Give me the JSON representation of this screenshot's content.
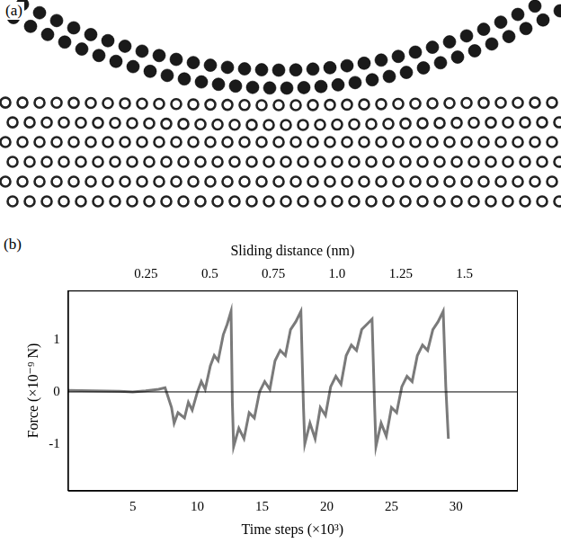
{
  "panel_a": {
    "label": "(a)"
  },
  "panel_b": {
    "label": "(b)"
  },
  "chart_data": {
    "type": "line",
    "x_label": "Time steps (×10³)",
    "y_label": "Force (×10⁻⁹ N)",
    "x2_label": "Sliding distance (nm)",
    "color": "#7a7a7a",
    "grid": false,
    "x": [
      0,
      2,
      4,
      5,
      6,
      7,
      7.5,
      8,
      8.2,
      8.5,
      9,
      9.3,
      9.6,
      10,
      10.3,
      10.6,
      11,
      11.3,
      11.6,
      12,
      12.3,
      12.6,
      12.7,
      12.8,
      13.2,
      13.6,
      14,
      14.4,
      14.8,
      15.2,
      15.6,
      16,
      16.4,
      16.8,
      17.2,
      17.6,
      18,
      18.2,
      18.3,
      18.7,
      19.1,
      19.5,
      19.9,
      20.3,
      20.7,
      21.1,
      21.5,
      21.9,
      22.3,
      22.7,
      23.1,
      23.5,
      23.7,
      23.8,
      24.2,
      24.6,
      25,
      25.4,
      25.8,
      26.2,
      26.6,
      27,
      27.4,
      27.8,
      28.2,
      28.6,
      29,
      29.2,
      29.4
    ],
    "values": [
      0.03,
      0.02,
      0.01,
      0.0,
      0.02,
      0.05,
      0.08,
      -0.3,
      -0.6,
      -0.4,
      -0.5,
      -0.2,
      -0.35,
      0.0,
      0.2,
      0.05,
      0.5,
      0.7,
      0.6,
      1.1,
      1.3,
      1.55,
      -0.2,
      -1.05,
      -0.7,
      -0.9,
      -0.4,
      -0.5,
      0.0,
      0.2,
      0.05,
      0.6,
      0.8,
      0.7,
      1.2,
      1.35,
      1.55,
      -0.3,
      -1.0,
      -0.6,
      -0.9,
      -0.3,
      -0.45,
      0.1,
      0.3,
      0.15,
      0.7,
      0.9,
      0.8,
      1.2,
      1.3,
      1.4,
      -0.3,
      -1.05,
      -0.6,
      -0.85,
      -0.3,
      -0.4,
      0.1,
      0.3,
      0.2,
      0.7,
      0.9,
      0.8,
      1.2,
      1.35,
      1.55,
      0.1,
      -0.9
    ],
    "xlim": [
      0,
      34.7
    ],
    "xticks": [
      5,
      10,
      15,
      20,
      25,
      30
    ],
    "x2lim": [
      -0.056,
      1.706
    ],
    "x2ticks": [
      0.25,
      0.5,
      0.75,
      {
        "value": 1.0,
        "label": "1.0"
      },
      1.25,
      1.5
    ],
    "ylim": [
      -1.9,
      1.95
    ],
    "yticks": [
      -1,
      0,
      1
    ]
  }
}
